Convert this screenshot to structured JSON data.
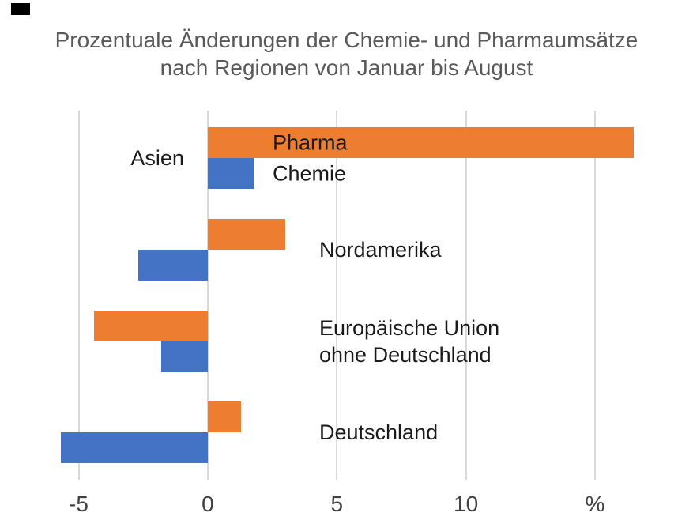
{
  "window": {
    "background_color": "#FFFFFF",
    "marker": {
      "description": "small black rectangle at top-left",
      "color": "#000000"
    }
  },
  "title": {
    "line1": "Prozentuale Änderungen der Chemie- und Pharmaumsätze",
    "line2": "nach Regionen von Januar bis August",
    "color": "#595959"
  },
  "chart_data": {
    "type": "bar",
    "orientation": "horizontal",
    "title": "Prozentuale Änderungen der Chemie- und Pharmaumsätze nach Regionen von Januar bis August",
    "categories": [
      "Asien",
      "Nordamerika",
      "Europäische Union ohne Deutschland",
      "Deutschland"
    ],
    "category_label_lines": [
      [
        "Asien"
      ],
      [
        "Nordamerika"
      ],
      [
        "Europäische Union",
        "ohne Deutschland"
      ],
      [
        "Deutschland"
      ]
    ],
    "series": [
      {
        "name": "Pharma",
        "color": "#ED7D31",
        "values": [
          16.5,
          3.0,
          -4.4,
          1.3
        ]
      },
      {
        "name": "Chemie",
        "color": "#4472C4",
        "values": [
          1.8,
          -2.7,
          -1.8,
          -5.7
        ]
      }
    ],
    "x_axis": {
      "tick_values": [
        -5,
        0,
        5,
        10,
        15
      ],
      "tick_labels": [
        "-5",
        "0",
        "5",
        "10",
        "%"
      ],
      "range": [
        -5,
        16.9
      ],
      "unit": "%"
    },
    "ylabel": "",
    "xlabel": "%",
    "grid": true,
    "legend_position": "inline-on-first-group",
    "colors": {
      "grid": "#D9D9D9",
      "tick_text": "#404040",
      "label_text": "#1A1A1A",
      "title_text": "#595959",
      "background": "#FFFFFF"
    }
  }
}
